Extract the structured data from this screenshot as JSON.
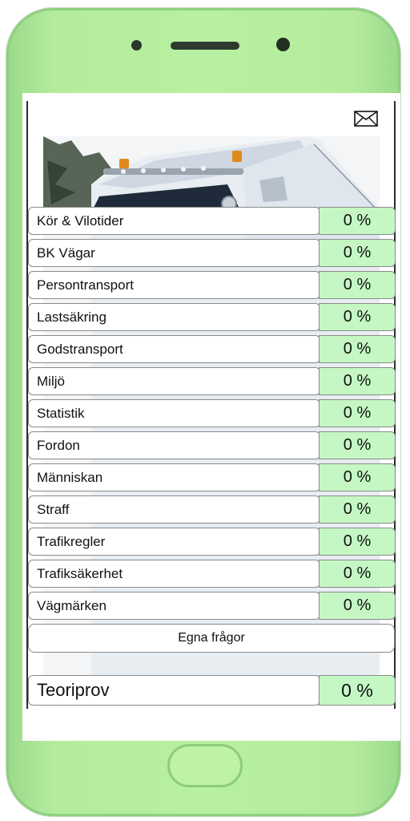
{
  "header": {
    "mail_icon": "envelope-icon"
  },
  "categories": [
    {
      "label": "Kör & Vilotider",
      "value": "0 %"
    },
    {
      "label": "BK Vägar",
      "value": "0 %"
    },
    {
      "label": "Persontransport",
      "value": "0 %"
    },
    {
      "label": "Lastsäkring",
      "value": "0 %"
    },
    {
      "label": "Godstransport",
      "value": "0 %"
    },
    {
      "label": "Miljö",
      "value": "0 %"
    },
    {
      "label": "Statistik",
      "value": "0 %"
    },
    {
      "label": "Fordon",
      "value": "0 %"
    },
    {
      "label": "Människan",
      "value": "0 %"
    },
    {
      "label": "Straff",
      "value": "0 %"
    },
    {
      "label": "Trafikregler",
      "value": "0 %"
    },
    {
      "label": "Trafiksäkerhet",
      "value": "0 %"
    },
    {
      "label": "Vägmärken",
      "value": "0 %"
    }
  ],
  "own_questions": {
    "label": "Egna frågor"
  },
  "theory_test": {
    "label": "Teoriprov",
    "value": "0 %"
  },
  "colors": {
    "phone_body": "#b8f0a2",
    "percent_bg": "#c4f7c4"
  }
}
